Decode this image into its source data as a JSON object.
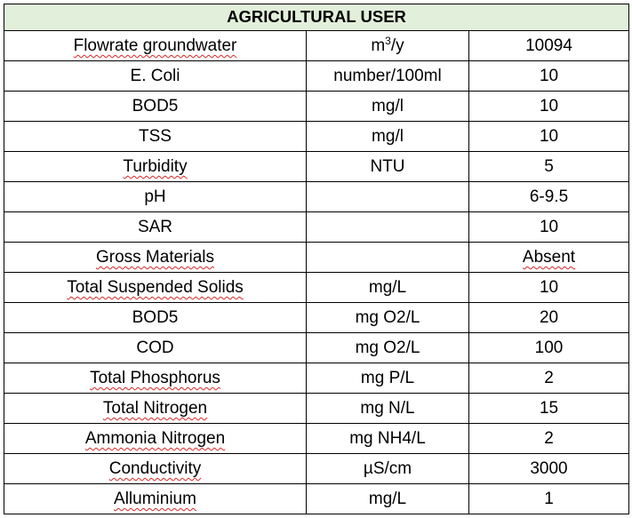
{
  "table": {
    "title": "AGRICULTURAL USER",
    "header_bg": "#e2efda",
    "border_color": "#000000",
    "spellcheck_color": "#d62828",
    "rows": [
      {
        "parameter": "Flowrate groundwater",
        "unit_prefix": "m",
        "unit_sup": "3",
        "unit_suffix": "/y",
        "value": "10094",
        "param_flagged": true,
        "value_flagged": false
      },
      {
        "parameter": "E. Coli",
        "unit": "number/100ml",
        "value": "10",
        "param_flagged": false,
        "value_flagged": false
      },
      {
        "parameter": "BOD5",
        "unit": "mg/l",
        "value": "10",
        "param_flagged": false,
        "value_flagged": false
      },
      {
        "parameter": "TSS",
        "unit": "mg/l",
        "value": "10",
        "param_flagged": false,
        "value_flagged": false
      },
      {
        "parameter": "Turbidity",
        "unit": "NTU",
        "value": "5",
        "param_flagged": true,
        "value_flagged": false
      },
      {
        "parameter": "pH",
        "unit": "",
        "value": "6-9.5",
        "param_flagged": false,
        "value_flagged": false
      },
      {
        "parameter": "SAR",
        "unit": "",
        "value": "10",
        "param_flagged": false,
        "value_flagged": false
      },
      {
        "parameter": "Gross Materials",
        "unit": "",
        "value": "Absent",
        "param_flagged": true,
        "value_flagged": true
      },
      {
        "parameter": "Total Suspended Solids",
        "unit": "mg/L",
        "value": "10",
        "param_flagged": true,
        "value_flagged": false
      },
      {
        "parameter": "BOD5",
        "unit": "mg O2/L",
        "value": "20",
        "param_flagged": false,
        "value_flagged": false
      },
      {
        "parameter": "COD",
        "unit": "mg O2/L",
        "value": "100",
        "param_flagged": false,
        "value_flagged": false
      },
      {
        "parameter": "Total Phosphorus",
        "unit": "mg P/L",
        "value": "2",
        "param_flagged": true,
        "value_flagged": false
      },
      {
        "parameter": "Total Nitrogen",
        "unit": "mg N/L",
        "value": "15",
        "param_flagged": true,
        "value_flagged": false
      },
      {
        "parameter": "Ammonia Nitrogen",
        "unit": "mg NH4/L",
        "value": "2",
        "param_flagged": true,
        "value_flagged": false
      },
      {
        "parameter": "Conductivity",
        "unit": "µS/cm",
        "value": "3000",
        "param_flagged": true,
        "value_flagged": false
      },
      {
        "parameter": "Alluminium",
        "unit": "mg/L",
        "value": "1",
        "param_flagged": true,
        "value_flagged": false
      }
    ]
  }
}
